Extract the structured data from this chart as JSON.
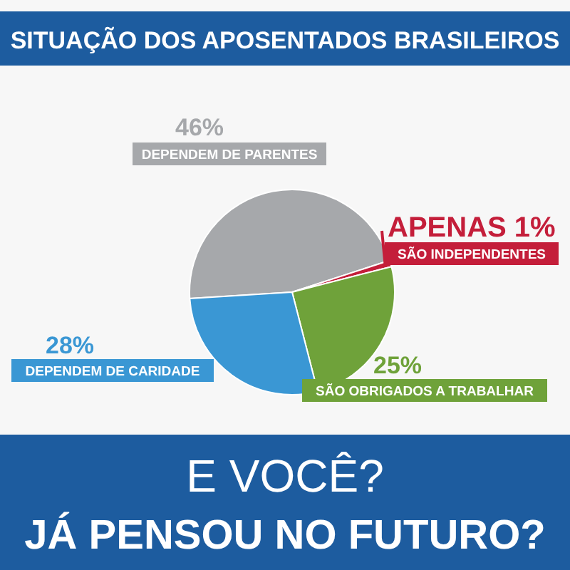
{
  "chart_data": {
    "type": "pie",
    "title": "SITUAÇÃO DOS APOSENTADOS BRASILEIROS",
    "categories": [
      "DEPENDEM DE PARENTES",
      "SÃO INDEPENDENTES",
      "SÃO OBRIGADOS A TRABALHAR",
      "DEPENDEM DE CARIDADE"
    ],
    "values": [
      46,
      1,
      25,
      28
    ],
    "colors": [
      "#a6a8ab",
      "#c41e3a",
      "#6fa23a",
      "#3a97d4"
    ],
    "value_labels": [
      "46%",
      "APENAS 1%",
      "25%",
      "28%"
    ],
    "annotations": [
      "E VOCÊ?",
      "JÁ PENSOU NO FUTURO?"
    ]
  }
}
